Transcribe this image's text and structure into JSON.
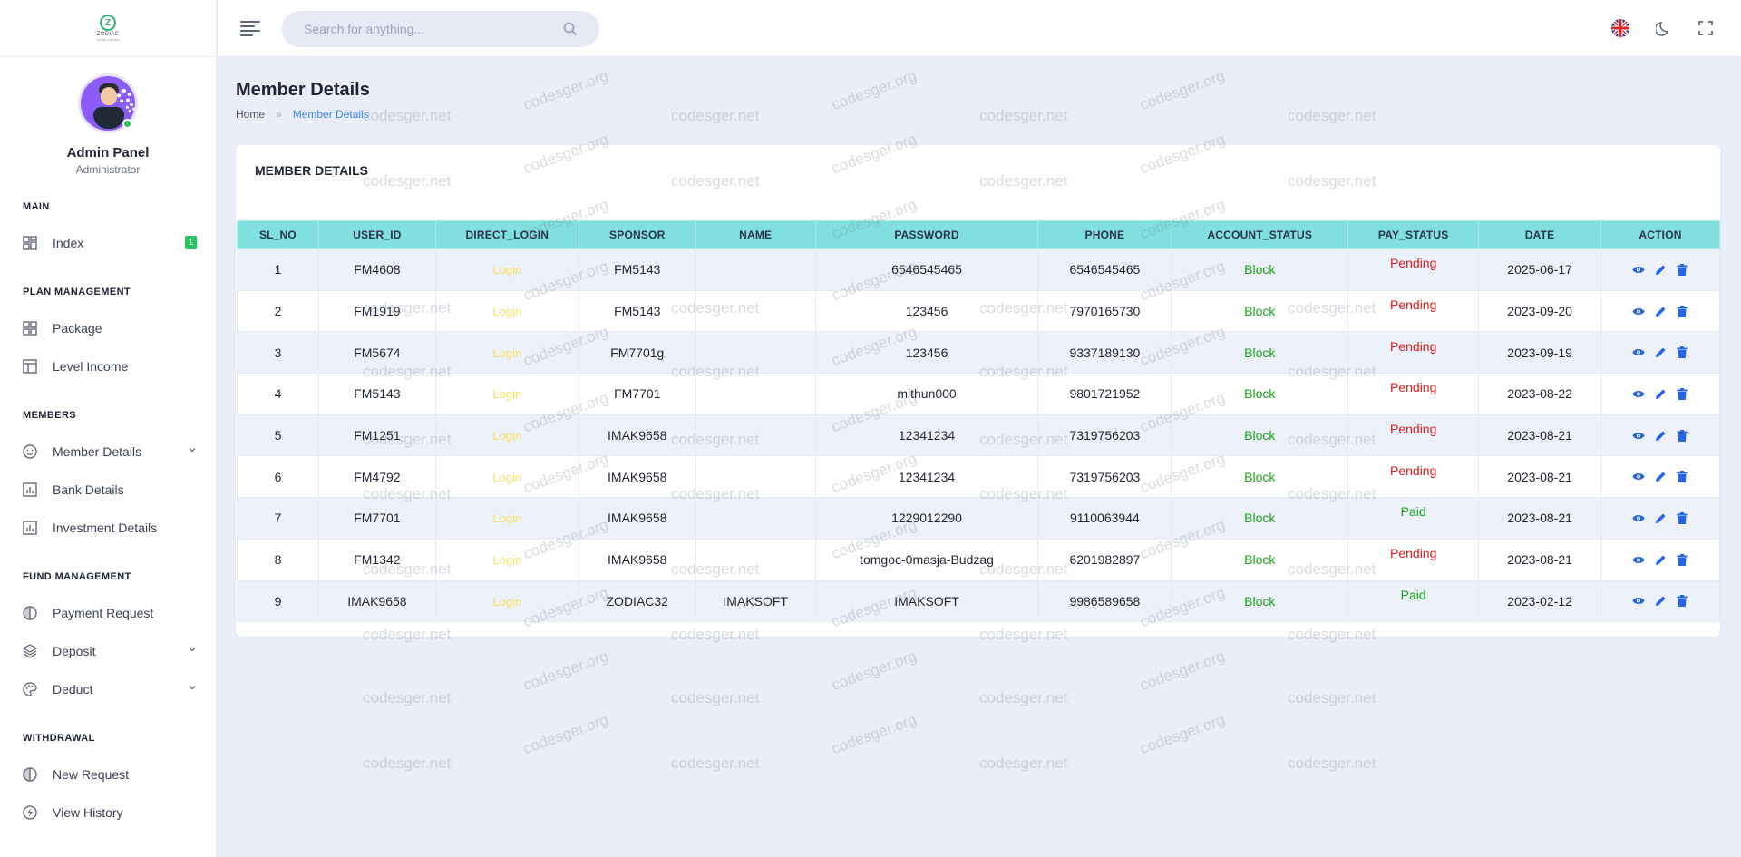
{
  "sidebar": {
    "logo": {
      "text": "ZODIAC",
      "subtext": "Group Limited"
    },
    "profile": {
      "name": "Admin Panel",
      "role": "Administrator"
    },
    "sections": {
      "main": "MAIN",
      "plan": "PLAN MANAGEMENT",
      "members": "MEMBERS",
      "fund": "FUND MANAGEMENT",
      "withdrawal": "WITHDRAWAL"
    },
    "items": {
      "index": {
        "label": "Index",
        "badge": "1"
      },
      "package": {
        "label": "Package"
      },
      "level_income": {
        "label": "Level Income"
      },
      "member_details": {
        "label": "Member Details"
      },
      "bank_details": {
        "label": "Bank Details"
      },
      "investment_details": {
        "label": "Investment Details"
      },
      "payment_request": {
        "label": "Payment Request"
      },
      "deposit": {
        "label": "Deposit"
      },
      "deduct": {
        "label": "Deduct"
      },
      "new_request": {
        "label": "New Request"
      },
      "view_history": {
        "label": "View History"
      }
    }
  },
  "topbar": {
    "search_placeholder": "Search for anything..."
  },
  "page": {
    "title": "Member Details",
    "breadcrumb": {
      "home": "Home",
      "separator": "»",
      "current": "Member Details"
    }
  },
  "card": {
    "title": "MEMBER DETAILS",
    "columns": [
      "SL_NO",
      "USER_ID",
      "DIRECT_LOGIN",
      "SPONSOR",
      "NAME",
      "PASSWORD",
      "PHONE",
      "ACCOUNT_STATUS",
      "PAY_STATUS",
      "DATE",
      "ACTION"
    ],
    "rows": [
      {
        "sl": "1",
        "user_id": "FM4608",
        "login": "Login",
        "sponsor": "FM5143",
        "name": "",
        "password": "6546545465",
        "phone": "6546545465",
        "account_status": "Block",
        "pay_status": "Pending",
        "date": "2025-06-17"
      },
      {
        "sl": "2",
        "user_id": "FM1919",
        "login": "Login",
        "sponsor": "FM5143",
        "name": "",
        "password": "123456",
        "phone": "7970165730",
        "account_status": "Block",
        "pay_status": "Pending",
        "date": "2023-09-20"
      },
      {
        "sl": "3",
        "user_id": "FM5674",
        "login": "Login",
        "sponsor": "FM7701g",
        "name": "",
        "password": "123456",
        "phone": "9337189130",
        "account_status": "Block",
        "pay_status": "Pending",
        "date": "2023-09-19"
      },
      {
        "sl": "4",
        "user_id": "FM5143",
        "login": "Login",
        "sponsor": "FM7701",
        "name": "",
        "password": "mithun000",
        "phone": "9801721952",
        "account_status": "Block",
        "pay_status": "Pending",
        "date": "2023-08-22"
      },
      {
        "sl": "5",
        "user_id": "FM1251",
        "login": "Login",
        "sponsor": "IMAK9658",
        "name": "",
        "password": "12341234",
        "phone": "7319756203",
        "account_status": "Block",
        "pay_status": "Pending",
        "date": "2023-08-21"
      },
      {
        "sl": "6",
        "user_id": "FM4792",
        "login": "Login",
        "sponsor": "IMAK9658",
        "name": "",
        "password": "12341234",
        "phone": "7319756203",
        "account_status": "Block",
        "pay_status": "Pending",
        "date": "2023-08-21"
      },
      {
        "sl": "7",
        "user_id": "FM7701",
        "login": "Login",
        "sponsor": "IMAK9658",
        "name": "",
        "password": "1229012290",
        "phone": "9110063944",
        "account_status": "Block",
        "pay_status": "Paid",
        "date": "2023-08-21"
      },
      {
        "sl": "8",
        "user_id": "FM1342",
        "login": "Login",
        "sponsor": "IMAK9658",
        "name": "",
        "password": "tomgoc-0masja-Budzag",
        "phone": "6201982897",
        "account_status": "Block",
        "pay_status": "Pending",
        "date": "2023-08-21"
      },
      {
        "sl": "9",
        "user_id": "IMAK9658",
        "login": "Login",
        "sponsor": "ZODIAC32",
        "name": "IMAKSOFT",
        "password": "IMAKSOFT",
        "phone": "9986589658",
        "account_status": "Block",
        "pay_status": "Paid",
        "date": "2023-02-12"
      }
    ]
  },
  "watermark": {
    "net": "codesger.net",
    "org": "codesger.org"
  },
  "colors": {
    "accent": "#3b82f6",
    "table_header": "#7fe0dd",
    "block": "#1aa31a",
    "pending": "#e01818",
    "paid": "#1aa31a",
    "login": "#f7df63",
    "badge": "#22c55e"
  },
  "icons": {
    "view": "eye-icon",
    "edit": "pencil-icon",
    "delete": "trash-icon"
  }
}
